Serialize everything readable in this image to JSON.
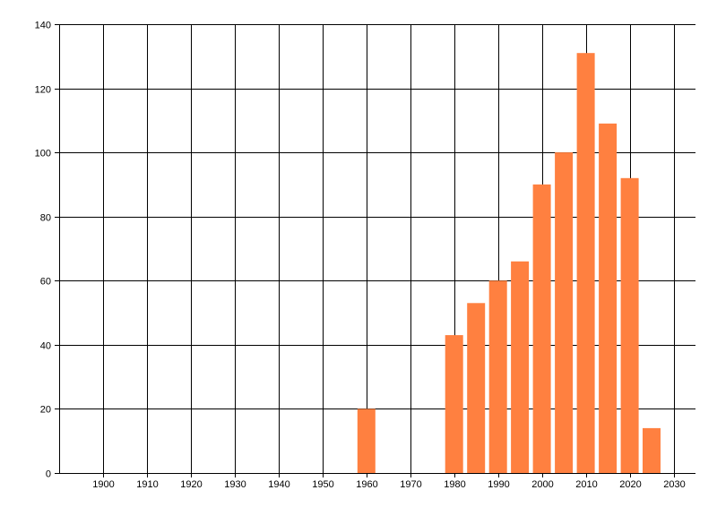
{
  "chart_data": {
    "type": "bar",
    "title": "",
    "xlabel": "",
    "ylabel": "",
    "x": [
      1960,
      1980,
      1985,
      1990,
      1995,
      2000,
      2005,
      2010,
      2015,
      2020,
      2025
    ],
    "values": [
      20,
      43,
      53,
      60,
      66,
      90,
      100,
      131,
      109,
      92,
      14
    ],
    "xlim": [
      1890,
      2035
    ],
    "ylim": [
      0,
      140
    ],
    "xticks": [
      1900,
      1910,
      1920,
      1930,
      1940,
      1950,
      1960,
      1970,
      1980,
      1990,
      2000,
      2010,
      2020,
      2030
    ],
    "yticks": [
      0,
      20,
      40,
      60,
      80,
      100,
      120,
      140
    ],
    "grid": true,
    "legend": "none",
    "colors": {
      "bar": "#ff8040",
      "grid": "#000000",
      "axis": "#000000",
      "background": "#ffffff"
    }
  }
}
